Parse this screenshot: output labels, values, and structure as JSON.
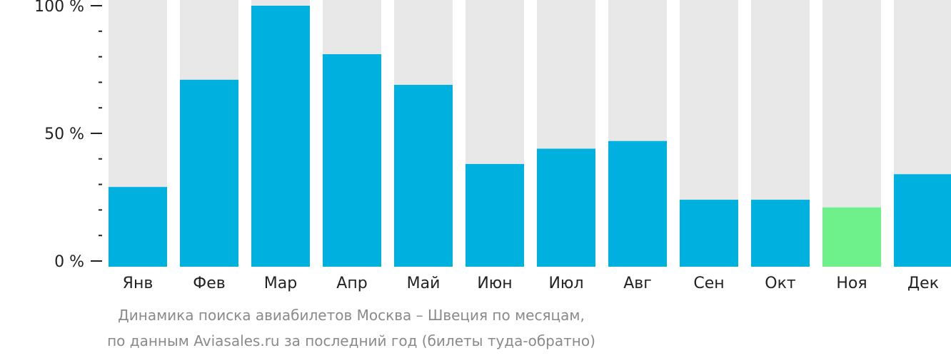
{
  "chart_data": {
    "type": "bar",
    "categories": [
      "Янв",
      "Фев",
      "Мар",
      "Апр",
      "Май",
      "Июн",
      "Июл",
      "Авг",
      "Сен",
      "Окт",
      "Ноя",
      "Дек"
    ],
    "values": [
      29,
      71,
      100,
      81,
      69,
      38,
      44,
      47,
      24,
      24,
      21,
      34
    ],
    "ylim": [
      0,
      100
    ],
    "y_ticks": [
      "0 %",
      "50 %",
      "100 %"
    ],
    "y_tick_values": [
      0,
      50,
      100
    ],
    "highlight_index": 10,
    "colors": {
      "bar": "#00b0de",
      "highlight": "#6ef08a",
      "background_bar": "#e8e8e8",
      "axis": "#222222",
      "tick_label": "#222222"
    },
    "grid": false,
    "legend": "none"
  },
  "caption": {
    "line1": "Динамика поиска авиабилетов Москва – Швеция по месяцам,",
    "line2": "по данным Aviasales.ru за последний год (билеты туда-обратно)"
  }
}
